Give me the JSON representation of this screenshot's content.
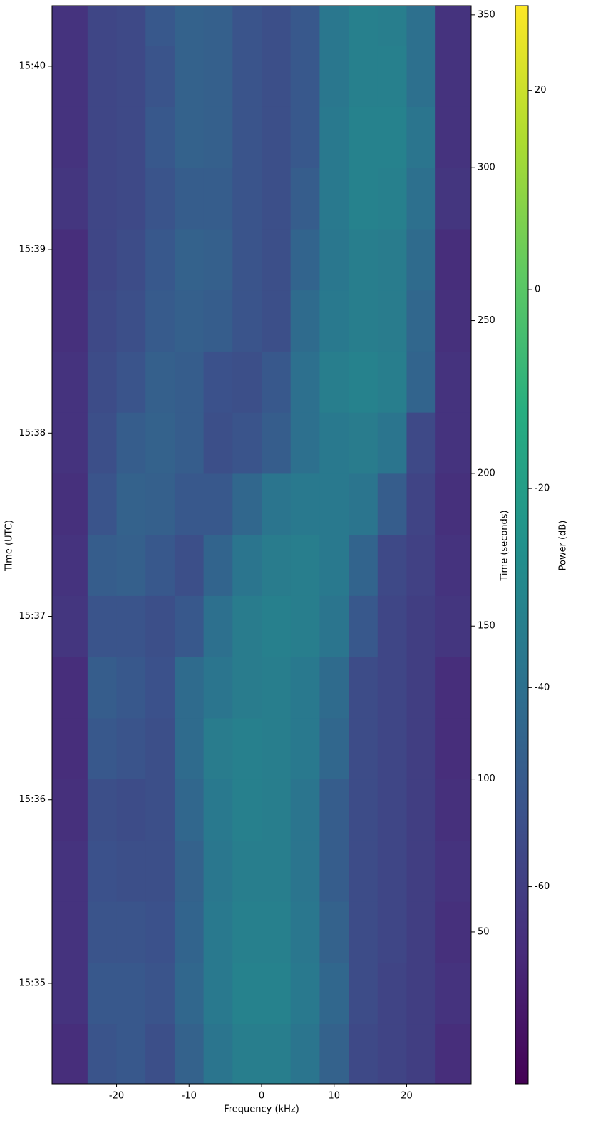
{
  "chart_data": {
    "type": "heatmap",
    "x_label": "Frequency (kHz)",
    "y_label": "Time (seconds)",
    "y_left_label": "Time (UTC)",
    "colorbar_label": "Power (dB)",
    "colormap": [
      "#440154",
      "#472d7b",
      "#3b528b",
      "#2c728e",
      "#21918c",
      "#28ae80",
      "#5ec962",
      "#addc30",
      "#fde725"
    ],
    "x_edges": [
      -28.9,
      -24,
      -20,
      -16,
      -12,
      -8,
      -4,
      0,
      4,
      8,
      12,
      16,
      20,
      24,
      28.9
    ],
    "y_edges": [
      0.3,
      20,
      40,
      60,
      80,
      100,
      120,
      140,
      160,
      180,
      200,
      220,
      240,
      260,
      280,
      300,
      320,
      340,
      353
    ],
    "z": [
      [
        -66,
        -52,
        -50,
        -54,
        -46,
        -38,
        -34,
        -34,
        -38,
        -46,
        -56,
        -58,
        -60,
        -66
      ],
      [
        -64,
        -50,
        -50,
        -52,
        -44,
        -36,
        -32,
        -32,
        -36,
        -44,
        -55,
        -58,
        -60,
        -64
      ],
      [
        -64,
        -52,
        -52,
        -53,
        -45,
        -36,
        -33,
        -33,
        -37,
        -46,
        -55,
        -57,
        -60,
        -65
      ],
      [
        -64,
        -53,
        -54,
        -54,
        -46,
        -37,
        -34,
        -34,
        -38,
        -48,
        -55,
        -57,
        -60,
        -64
      ],
      [
        -65,
        -54,
        -55,
        -54,
        -44,
        -36,
        -33,
        -34,
        -38,
        -48,
        -55,
        -57,
        -60,
        -65
      ],
      [
        -66,
        -50,
        -52,
        -54,
        -42,
        -35,
        -33,
        -34,
        -36,
        -44,
        -55,
        -57,
        -60,
        -66
      ],
      [
        -66,
        -48,
        -50,
        -53,
        -42,
        -38,
        -35,
        -34,
        -36,
        -42,
        -55,
        -57,
        -60,
        -66
      ],
      [
        -63,
        -52,
        -52,
        -54,
        -50,
        -40,
        -35,
        -33,
        -34,
        -38,
        -50,
        -57,
        -60,
        -63
      ],
      [
        -64,
        -48,
        -47,
        -50,
        -54,
        -45,
        -38,
        -35,
        -34,
        -36,
        -45,
        -56,
        -59,
        -64
      ],
      [
        -65,
        -52,
        -46,
        -47,
        -50,
        -50,
        -44,
        -38,
        -36,
        -36,
        -38,
        -48,
        -58,
        -65
      ],
      [
        -64,
        -54,
        -48,
        -46,
        -48,
        -54,
        -52,
        -48,
        -40,
        -36,
        -35,
        -38,
        -56,
        -64
      ],
      [
        -64,
        -55,
        -52,
        -47,
        -48,
        -53,
        -54,
        -50,
        -40,
        -34,
        -32,
        -34,
        -45,
        -64
      ],
      [
        -65,
        -56,
        -54,
        -49,
        -47,
        -48,
        -52,
        -54,
        -42,
        -36,
        -34,
        -35,
        -44,
        -65
      ],
      [
        -66,
        -57,
        -55,
        -50,
        -46,
        -47,
        -52,
        -54,
        -45,
        -37,
        -34,
        -35,
        -42,
        -66
      ],
      [
        -63,
        -57,
        -56,
        -52,
        -48,
        -48,
        -52,
        -54,
        -48,
        -36,
        -32,
        -33,
        -40,
        -63
      ],
      [
        -64,
        -57,
        -56,
        -50,
        -46,
        -47,
        -52,
        -54,
        -50,
        -36,
        -32,
        -32,
        -38,
        -64
      ],
      [
        -64,
        -57,
        -56,
        -52,
        -46,
        -47,
        -52,
        -54,
        -50,
        -37,
        -33,
        -33,
        -40,
        -64
      ],
      [
        -64,
        -57,
        -56,
        -50,
        -46,
        -47,
        -52,
        -54,
        -50,
        -37,
        -33,
        -34,
        -40,
        -64
      ]
    ],
    "xlim": [
      -28.9,
      28.9
    ],
    "xticks": [
      -20,
      -10,
      0,
      10,
      20
    ],
    "ylim": [
      0.3,
      353
    ],
    "yticks": [
      50,
      100,
      150,
      200,
      250,
      300,
      350
    ],
    "y_left_ticks": [
      {
        "value": 33.2,
        "label": "15:35"
      },
      {
        "value": 93.2,
        "label": "15:36"
      },
      {
        "value": 153.2,
        "label": "15:37"
      },
      {
        "value": 213.2,
        "label": "15:38"
      },
      {
        "value": 273.2,
        "label": "15:39"
      },
      {
        "value": 333.2,
        "label": "15:40"
      }
    ],
    "clim": [
      -79.8,
      28.5
    ],
    "cticks": [
      -60,
      -40,
      -20,
      0,
      20
    ]
  }
}
